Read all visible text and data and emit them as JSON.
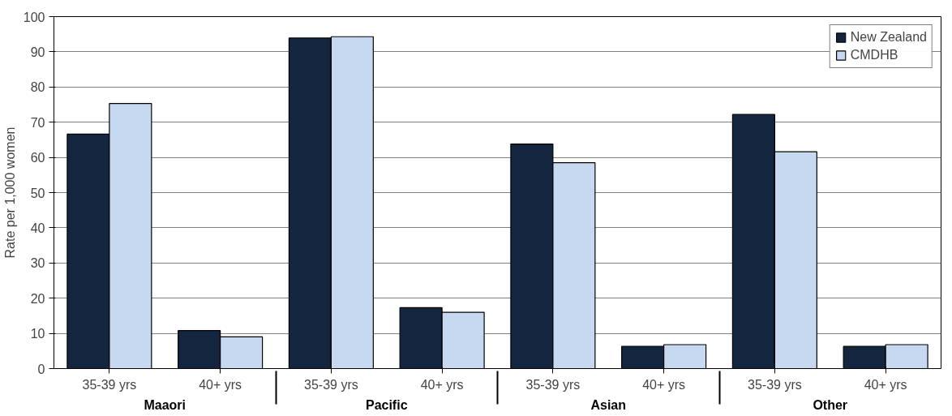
{
  "chart_data": {
    "type": "bar",
    "ylabel": "Rate per 1,000 women",
    "categories": [
      "35-39 yrs",
      "40+ yrs",
      "35-39 yrs",
      "40+ yrs",
      "35-39 yrs",
      "40+ yrs",
      "35-39 yrs",
      "40+ yrs"
    ],
    "annotations": [
      "Maaori",
      "Pacific",
      "Asian",
      "Other"
    ],
    "series": [
      {
        "name": "New Zealand",
        "color": "#13253f",
        "values": [
          66.6,
          10.8,
          93.9,
          17.3,
          63.8,
          6.3,
          72.2,
          6.3
        ]
      },
      {
        "name": "CMDHB",
        "color": "#c6d9f1",
        "values": [
          75.3,
          9.0,
          94.3,
          16.0,
          58.5,
          6.8,
          61.6,
          6.8
        ]
      }
    ],
    "ylim": [
      0,
      100
    ],
    "yticks": [
      0,
      10,
      20,
      30,
      40,
      50,
      60,
      70,
      80,
      90,
      100
    ],
    "grid": "y",
    "legend": "top right"
  }
}
